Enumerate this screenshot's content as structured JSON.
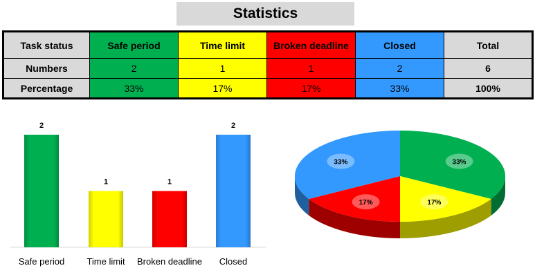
{
  "title": "Statistics",
  "table": {
    "row_headers": [
      "Task status",
      "Numbers",
      "Percentage"
    ],
    "columns": [
      {
        "label": "Safe period",
        "number": "2",
        "percentage": "33%",
        "color": "#00b050"
      },
      {
        "label": "Time limit",
        "number": "1",
        "percentage": "17%",
        "color": "#ffff00"
      },
      {
        "label": "Broken deadline",
        "number": "1",
        "percentage": "17%",
        "color": "#ff0000"
      },
      {
        "label": "Closed",
        "number": "2",
        "percentage": "33%",
        "color": "#3399ff"
      }
    ],
    "total": {
      "label": "Total",
      "number": "6",
      "percentage": "100%"
    }
  },
  "chart_data": [
    {
      "type": "bar",
      "categories": [
        "Safe period",
        "Time limit",
        "Broken deadline",
        "Closed"
      ],
      "values": [
        2,
        1,
        1,
        2
      ],
      "data_labels": [
        "2",
        "1",
        "1",
        "2"
      ],
      "colors": [
        "#00b050",
        "#ffff00",
        "#ff0000",
        "#3399ff"
      ],
      "ylim": [
        0,
        2
      ],
      "grid": false,
      "legend": "none"
    },
    {
      "type": "pie",
      "style": "3d",
      "categories": [
        "Safe period",
        "Time limit",
        "Broken deadline",
        "Closed"
      ],
      "values": [
        2,
        1,
        1,
        2
      ],
      "data_labels": [
        "33%",
        "17%",
        "17%",
        "33%"
      ],
      "colors": [
        "#00b050",
        "#ffff00",
        "#ff0000",
        "#3399ff"
      ],
      "legend": "none"
    }
  ]
}
